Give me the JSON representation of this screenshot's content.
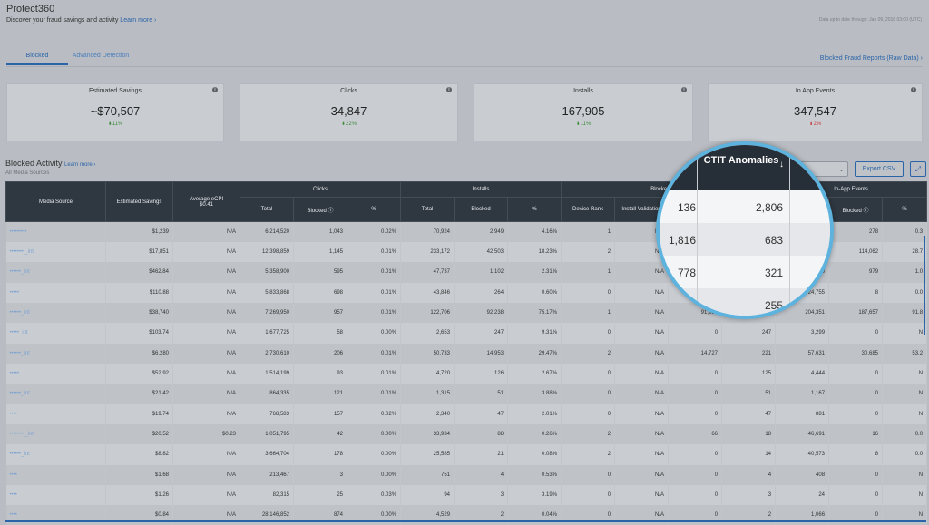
{
  "header": {
    "title": "Protect360",
    "subtitle": "Discover your fraud savings and activity",
    "learn_more": "Learn more ›",
    "data_note": "Data up to date through: Jan 09, 2018 03:00 (UTC)"
  },
  "tabs": [
    {
      "label": "Blocked"
    },
    {
      "label": "Advanced Detection"
    }
  ],
  "reports_link": "Blocked Fraud Reports (Raw Data) ›",
  "cards": [
    {
      "title": "Estimated Savings",
      "value": "~$70,507",
      "delta": "11%",
      "direction": "down"
    },
    {
      "title": "Clicks",
      "value": "34,847",
      "delta": "22%",
      "direction": "down"
    },
    {
      "title": "Installs",
      "value": "167,905",
      "delta": "11%",
      "direction": "down"
    },
    {
      "title": "In App Events",
      "value": "347,547",
      "delta": "2%",
      "direction": "up"
    }
  ],
  "section": {
    "title": "Blocked Activity",
    "learn_more": "Learn more ›",
    "sub": "All Media Sources"
  },
  "controls": {
    "select_arrow": "⌄",
    "export_csv": "Export CSV",
    "expand_icon": "⤢"
  },
  "table": {
    "groups": {
      "media_source": "Media Source",
      "estimated_savings": "Estimated Savings",
      "avg_ecpi": "Average eCPI",
      "avg_ecpi_value": "$0.41",
      "clicks": "Clicks",
      "installs": "Installs",
      "blocked_installs": "Blocked Install",
      "in_app_events": "In-App Events"
    },
    "subheaders": {
      "total": "Total",
      "blocked": "Blocked",
      "pct": "%",
      "device_rank": "Device Rank",
      "install_validation": "Install Validation"
    },
    "rows": [
      [
        "•••••••••",
        "$1,239",
        "N/A",
        "6,214,520",
        "1,043",
        "0.02%",
        "70,924",
        "2,949",
        "4.16%",
        "1",
        "N/A",
        "",
        "",
        "",
        "278",
        "0.3"
      ],
      [
        "••••••••_int",
        "$17,851",
        "N/A",
        "12,398,859",
        "1,145",
        "0.01%",
        "233,172",
        "42,503",
        "18.23%",
        "2",
        "N/A",
        "",
        "",
        "",
        "114,062",
        "28.7"
      ],
      [
        "••••••_int",
        "$462.84",
        "N/A",
        "5,358,900",
        "595",
        "0.01%",
        "47,737",
        "1,102",
        "2.31%",
        "1",
        "N/A",
        "",
        "",
        "189",
        "979",
        "1.0"
      ],
      [
        "•••••",
        "$110.88",
        "N/A",
        "5,833,868",
        "698",
        "0.01%",
        "43,846",
        "264",
        "0.60%",
        "0",
        "N/A",
        "",
        "",
        "24,755",
        "8",
        "0.0"
      ],
      [
        "••••••_int",
        "$38,740",
        "N/A",
        "7,269,950",
        "957",
        "0.01%",
        "122,706",
        "92,238",
        "75.17%",
        "1",
        "N/A",
        "91,985",
        "250",
        "204,351",
        "187,657",
        "91.8"
      ],
      [
        "•••••_int",
        "$103.74",
        "N/A",
        "1,677,725",
        "58",
        "0.00%",
        "2,653",
        "247",
        "9.31%",
        "0",
        "N/A",
        "0",
        "247",
        "3,299",
        "0",
        "N"
      ],
      [
        "••••••_int",
        "$6,280",
        "N/A",
        "2,730,610",
        "206",
        "0.01%",
        "50,733",
        "14,953",
        "29.47%",
        "2",
        "N/A",
        "14,727",
        "221",
        "57,631",
        "30,685",
        "53.2"
      ],
      [
        "•••••",
        "$52.92",
        "N/A",
        "1,514,199",
        "93",
        "0.01%",
        "4,720",
        "126",
        "2.67%",
        "0",
        "N/A",
        "0",
        "125",
        "4,444",
        "0",
        "N"
      ],
      [
        "••••••_int",
        "$21.42",
        "N/A",
        "864,335",
        "121",
        "0.01%",
        "1,315",
        "51",
        "3.88%",
        "0",
        "N/A",
        "0",
        "51",
        "1,167",
        "0",
        "N"
      ],
      [
        "••••",
        "$19.74",
        "N/A",
        "768,583",
        "157",
        "0.02%",
        "2,340",
        "47",
        "2.01%",
        "0",
        "N/A",
        "0",
        "47",
        "881",
        "0",
        "N"
      ],
      [
        "••••••••_int",
        "$20.52",
        "$0.23",
        "1,051,795",
        "42",
        "0.00%",
        "33,934",
        "88",
        "0.26%",
        "2",
        "N/A",
        "66",
        "18",
        "46,691",
        "16",
        "0.0"
      ],
      [
        "••••••_int",
        "$8.82",
        "N/A",
        "3,664,704",
        "178",
        "0.00%",
        "25,585",
        "21",
        "0.08%",
        "2",
        "N/A",
        "0",
        "14",
        "40,573",
        "8",
        "0.0"
      ],
      [
        "••••",
        "$1.68",
        "N/A",
        "213,467",
        "3",
        "0.00%",
        "751",
        "4",
        "0.53%",
        "0",
        "N/A",
        "0",
        "4",
        "408",
        "0",
        "N"
      ],
      [
        "••••",
        "$1.26",
        "N/A",
        "82,315",
        "25",
        "0.03%",
        "94",
        "3",
        "3.19%",
        "0",
        "N/A",
        "0",
        "3",
        "24",
        "0",
        "N"
      ],
      [
        "••••",
        "$0.84",
        "N/A",
        "28,146,852",
        "874",
        "0.00%",
        "4,529",
        "2",
        "0.04%",
        "0",
        "N/A",
        "0",
        "2",
        "1,066",
        "0",
        "N"
      ]
    ]
  },
  "magnifier": {
    "header": "CTIT Anomalies",
    "sort_icon": "↓",
    "rows": [
      {
        "left": "136",
        "right": "2,806"
      },
      {
        "left": "1,816",
        "right": "683"
      },
      {
        "left": "778",
        "right": "321"
      },
      {
        "left": "",
        "right": "255"
      }
    ]
  }
}
